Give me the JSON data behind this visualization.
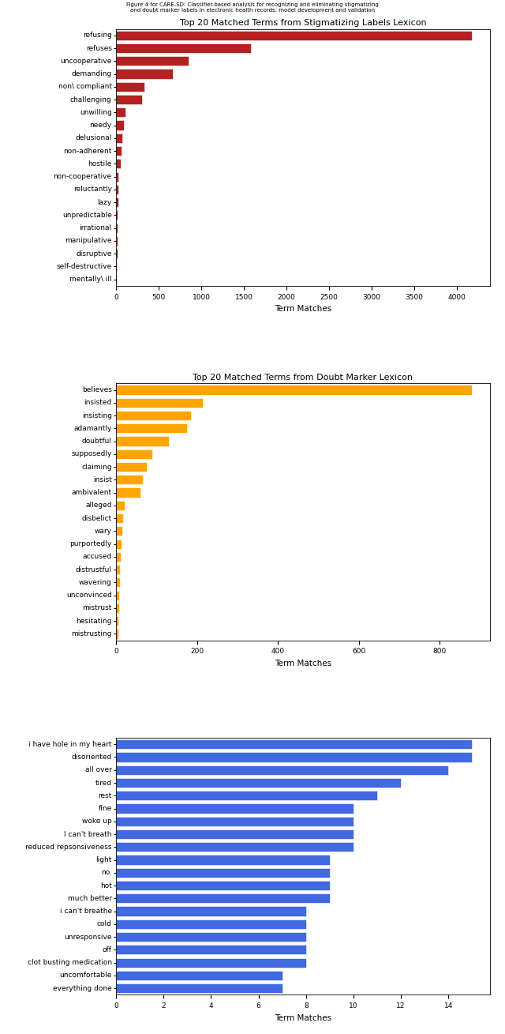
{
  "chart1": {
    "title": "Top 20 Matched Terms from Stigmatizing Labels Lexicon",
    "xlabel": "Term Matches",
    "color": "#B22222",
    "categories": [
      "mentally\\ ill",
      "self-destructive",
      "disruptive",
      "manipulative",
      "irrational",
      "unpredictable",
      "lazy",
      "reluctantly",
      "non-cooperative",
      "hostile",
      "non-adherent",
      "delusional",
      "needy",
      "unwilling",
      "challenging",
      "non\\ compliant",
      "demanding",
      "uncooperative",
      "refuses",
      "refusing"
    ],
    "values": [
      10,
      12,
      14,
      15,
      18,
      20,
      22,
      25,
      30,
      55,
      65,
      75,
      95,
      110,
      300,
      330,
      670,
      850,
      1580,
      4180
    ]
  },
  "chart2": {
    "title": "Top 20 Matched Terms from Doubt Marker Lexicon",
    "xlabel": "Term Matches",
    "color": "#FFA500",
    "categories": [
      "mistrusting",
      "hesitating",
      "mistrust",
      "unconvinced",
      "wavering",
      "distrustful",
      "accused",
      "purportedly",
      "wary",
      "disbelict",
      "alleged",
      "ambivalent",
      "insist",
      "claiming",
      "supposedly",
      "doubtful",
      "adamantly",
      "insisting",
      "insisted",
      "believes"
    ],
    "values": [
      5,
      6,
      7,
      8,
      9,
      10,
      12,
      14,
      16,
      18,
      22,
      60,
      65,
      75,
      90,
      130,
      175,
      185,
      215,
      880
    ]
  },
  "chart3": {
    "title": "",
    "xlabel": "Term Matches",
    "color": "#4169E1",
    "categories": [
      "everything done",
      "uncomfortable",
      "clot busting medication",
      "off",
      "unresponsive",
      "cold",
      "i can't breathe",
      "much better",
      "hot",
      "no.",
      "light",
      "reduced repsonsiveness",
      "I can't breath",
      "woke up",
      "fine",
      "rest",
      "tired",
      "all over",
      "disoriented",
      "i have hole in my heart"
    ],
    "values": [
      7,
      7,
      8,
      8,
      8,
      8,
      8,
      9,
      9,
      9,
      9,
      10,
      10,
      10,
      10,
      11,
      12,
      14,
      15,
      15
    ]
  },
  "figure_title": "Figure 4 for CARE-SD: Classifier-based analysis for recognizing and eliminating stigmatizing\nand doubt marker labels in electronic health records: model development and validation",
  "bar_height": 0.75,
  "label_fontsize": 6.5,
  "title_fontsize": 8,
  "xlabel_fontsize": 7.5
}
